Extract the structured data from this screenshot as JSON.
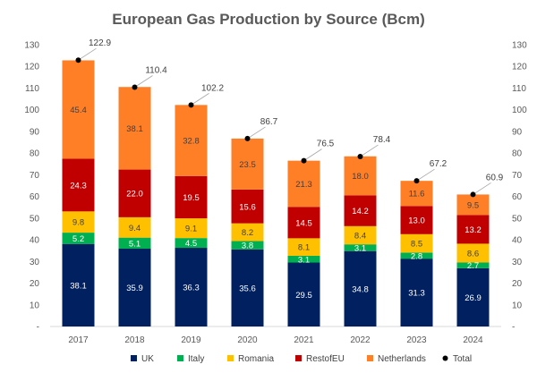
{
  "chart_data": {
    "type": "bar",
    "stacked": true,
    "title": "European Gas Production by Source (Bcm)",
    "categories": [
      "2017",
      "2018",
      "2019",
      "2020",
      "2021",
      "2022",
      "2023",
      "2024"
    ],
    "ylim": [
      0,
      130
    ],
    "ytick_step": 10,
    "zero_tick_label": "-",
    "grid": false,
    "axes": "left and right, mirrored",
    "legend_position": "bottom",
    "series": [
      {
        "name": "UK",
        "color": "#002060",
        "label_color": "#ffffff",
        "values": [
          38.1,
          35.9,
          36.3,
          35.6,
          29.5,
          34.8,
          31.3,
          26.9
        ]
      },
      {
        "name": "Italy",
        "color": "#00B050",
        "label_color": "#ffffff",
        "values": [
          5.2,
          5.1,
          4.5,
          3.8,
          3.1,
          3.1,
          2.8,
          2.7
        ]
      },
      {
        "name": "Romania",
        "color": "#FFC000",
        "label_color": "#404040",
        "values": [
          9.8,
          9.4,
          9.1,
          8.2,
          8.1,
          8.4,
          8.5,
          8.6
        ]
      },
      {
        "name": "RestofEU",
        "color": "#C00000",
        "label_color": "#ffffff",
        "values": [
          24.3,
          22.0,
          19.5,
          15.6,
          14.5,
          14.2,
          13.0,
          13.2
        ]
      },
      {
        "name": "Netherlands",
        "color": "#FF7F27",
        "label_color": "#404040",
        "values": [
          45.4,
          38.1,
          32.8,
          23.5,
          21.3,
          18.0,
          11.6,
          9.5
        ]
      }
    ],
    "total": {
      "name": "Total",
      "color": "#000000",
      "values": [
        122.9,
        110.4,
        102.2,
        86.7,
        76.5,
        78.4,
        67.2,
        60.9
      ]
    }
  }
}
